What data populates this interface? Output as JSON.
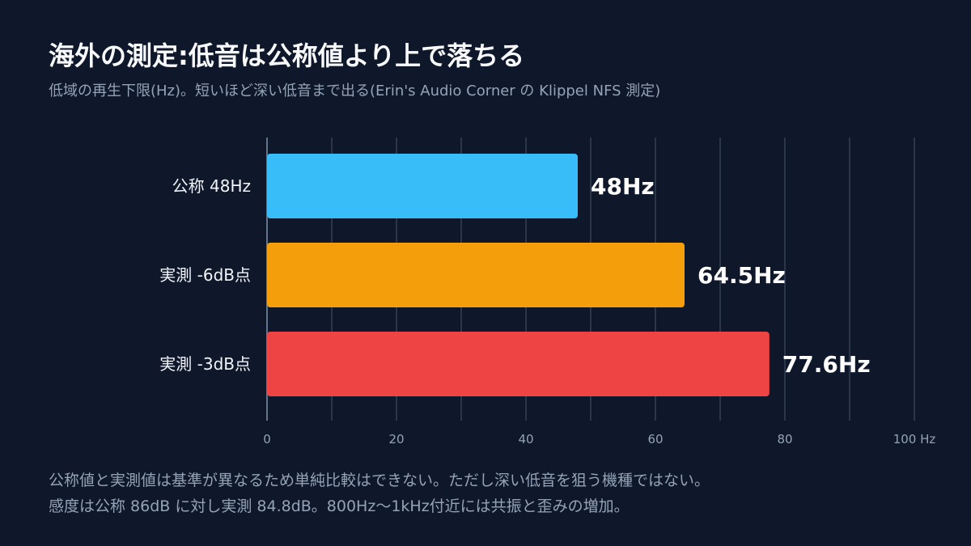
{
  "title": "海外の測定:低音は公称値より上で落ちる",
  "subtitle": "低域の再生下限(Hz)。短いほど深い低音まで出る(Erin's Audio Corner の Klippel NFS 測定)",
  "footer": {
    "line1": "公称値と実測値は基準が異なるため単純比較はできない。ただし深い低音を狙う機種ではない。",
    "line2": "感度は公称 86dB に対し実測 84.8dB。800Hz〜1kHz付近には共振と歪みの増加。"
  },
  "chart_data": {
    "type": "bar",
    "orientation": "horizontal",
    "categories": [
      "公称 48Hz",
      "実測 -6dB点",
      "実測 -3dB点"
    ],
    "values": [
      48,
      64.5,
      77.6
    ],
    "value_labels": [
      "48Hz",
      "64.5Hz",
      "77.6Hz"
    ],
    "colors": [
      "#38bdf8",
      "#f59e0b",
      "#ef4444"
    ],
    "xlim": [
      0,
      100
    ],
    "xticks": [
      0,
      20,
      40,
      60,
      80,
      100
    ],
    "xtick_labels": [
      "0",
      "20",
      "40",
      "60",
      "80",
      "100 Hz"
    ],
    "grid": true
  }
}
